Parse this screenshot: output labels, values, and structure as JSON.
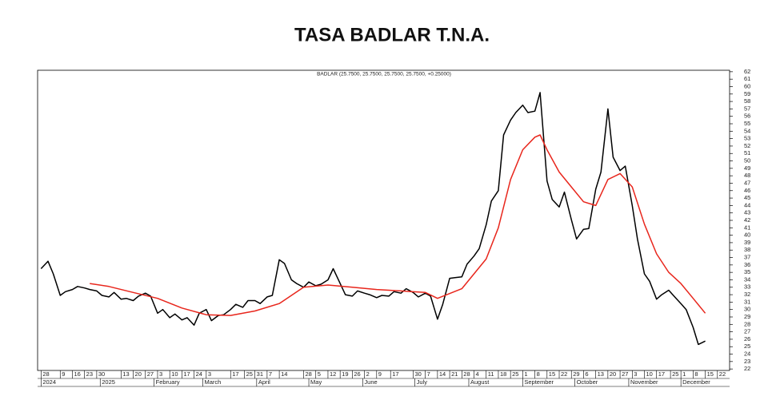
{
  "chart_data": {
    "type": "line",
    "title": "TASA BADLAR T.N.A.",
    "subtitle": "BADLAR (25.7500, 25.7500, 25.7500, 25.7500, +0.25000)",
    "xlim": [
      "2024-11-26",
      "2025-12-29"
    ],
    "ylim": [
      21.8,
      62.2
    ],
    "yticks": [
      22,
      23,
      24,
      25,
      26,
      27,
      28,
      29,
      30,
      31,
      32,
      33,
      34,
      35,
      36,
      37,
      38,
      39,
      40,
      41,
      42,
      43,
      44,
      45,
      46,
      47,
      48,
      49,
      50,
      51,
      52,
      53,
      54,
      55,
      56,
      57,
      58,
      59,
      60,
      61,
      62
    ],
    "xticks": [
      {
        "value": "2024-11-28",
        "label": "28"
      },
      {
        "value": "2024-12-09",
        "label": "9"
      },
      {
        "value": "2024-12-16",
        "label": "16"
      },
      {
        "value": "2024-12-23",
        "label": "23"
      },
      {
        "value": "2024-12-30",
        "label": "30"
      },
      {
        "value": "2025-01-13",
        "label": "13"
      },
      {
        "value": "2025-01-20",
        "label": "20"
      },
      {
        "value": "2025-01-27",
        "label": "27"
      },
      {
        "value": "2025-02-03",
        "label": "3"
      },
      {
        "value": "2025-02-10",
        "label": "10"
      },
      {
        "value": "2025-02-17",
        "label": "17"
      },
      {
        "value": "2025-02-24",
        "label": "24"
      },
      {
        "value": "2025-03-03",
        "label": "3"
      },
      {
        "value": "2025-03-17",
        "label": "17"
      },
      {
        "value": "2025-03-25",
        "label": "25"
      },
      {
        "value": "2025-03-31",
        "label": "31"
      },
      {
        "value": "2025-04-07",
        "label": "7"
      },
      {
        "value": "2025-04-14",
        "label": "14"
      },
      {
        "value": "2025-04-28",
        "label": "28"
      },
      {
        "value": "2025-05-05",
        "label": "5"
      },
      {
        "value": "2025-05-12",
        "label": "12"
      },
      {
        "value": "2025-05-19",
        "label": "19"
      },
      {
        "value": "2025-05-26",
        "label": "26"
      },
      {
        "value": "2025-06-02",
        "label": "2"
      },
      {
        "value": "2025-06-09",
        "label": "9"
      },
      {
        "value": "2025-06-17",
        "label": "17"
      },
      {
        "value": "2025-06-30",
        "label": "30"
      },
      {
        "value": "2025-07-07",
        "label": "7"
      },
      {
        "value": "2025-07-14",
        "label": "14"
      },
      {
        "value": "2025-07-21",
        "label": "21"
      },
      {
        "value": "2025-07-28",
        "label": "28"
      },
      {
        "value": "2025-08-04",
        "label": "4"
      },
      {
        "value": "2025-08-11",
        "label": "11"
      },
      {
        "value": "2025-08-18",
        "label": "18"
      },
      {
        "value": "2025-08-25",
        "label": "25"
      },
      {
        "value": "2025-09-01",
        "label": "1"
      },
      {
        "value": "2025-09-08",
        "label": "8"
      },
      {
        "value": "2025-09-15",
        "label": "15"
      },
      {
        "value": "2025-09-22",
        "label": "22"
      },
      {
        "value": "2025-09-29",
        "label": "29"
      },
      {
        "value": "2025-10-06",
        "label": "6"
      },
      {
        "value": "2025-10-13",
        "label": "13"
      },
      {
        "value": "2025-10-20",
        "label": "20"
      },
      {
        "value": "2025-10-27",
        "label": "27"
      },
      {
        "value": "2025-11-03",
        "label": "3"
      },
      {
        "value": "2025-11-10",
        "label": "10"
      },
      {
        "value": "2025-11-17",
        "label": "17"
      },
      {
        "value": "2025-11-25",
        "label": "25"
      },
      {
        "value": "2025-12-01",
        "label": "1"
      },
      {
        "value": "2025-12-08",
        "label": "8"
      },
      {
        "value": "2025-12-15",
        "label": "15"
      },
      {
        "value": "2025-12-22",
        "label": "22"
      }
    ],
    "xticks_months": [
      {
        "value": "2024-11-28",
        "label": "2024"
      },
      {
        "value": "2025-01-01",
        "label": "2025"
      },
      {
        "value": "2025-02-01",
        "label": "February"
      },
      {
        "value": "2025-03-01",
        "label": "March"
      },
      {
        "value": "2025-04-01",
        "label": "April"
      },
      {
        "value": "2025-05-01",
        "label": "May"
      },
      {
        "value": "2025-06-01",
        "label": "June"
      },
      {
        "value": "2025-07-01",
        "label": "July"
      },
      {
        "value": "2025-08-01",
        "label": "August"
      },
      {
        "value": "2025-09-01",
        "label": "September"
      },
      {
        "value": "2025-10-01",
        "label": "October"
      },
      {
        "value": "2025-11-01",
        "label": "November"
      },
      {
        "value": "2025-12-01",
        "label": "December"
      }
    ],
    "series": [
      {
        "color": "#000000",
        "x": [
          "2024-11-28",
          "2024-12-02",
          "2024-12-05",
          "2024-12-09",
          "2024-12-12",
          "2024-12-16",
          "2024-12-19",
          "2024-12-23",
          "2024-12-26",
          "2024-12-30",
          "2025-01-02",
          "2025-01-06",
          "2025-01-09",
          "2025-01-13",
          "2025-01-16",
          "2025-01-20",
          "2025-01-23",
          "2025-01-27",
          "2025-01-30",
          "2025-02-03",
          "2025-02-06",
          "2025-02-10",
          "2025-02-13",
          "2025-02-17",
          "2025-02-20",
          "2025-02-24",
          "2025-02-27",
          "2025-03-03",
          "2025-03-06",
          "2025-03-10",
          "2025-03-13",
          "2025-03-17",
          "2025-03-20",
          "2025-03-24",
          "2025-03-27",
          "2025-03-31",
          "2025-04-03",
          "2025-04-07",
          "2025-04-10",
          "2025-04-14",
          "2025-04-17",
          "2025-04-21",
          "2025-04-24",
          "2025-04-28",
          "2025-05-01",
          "2025-05-05",
          "2025-05-08",
          "2025-05-12",
          "2025-05-15",
          "2025-05-19",
          "2025-05-22",
          "2025-05-26",
          "2025-05-29",
          "2025-06-02",
          "2025-06-05",
          "2025-06-09",
          "2025-06-12",
          "2025-06-16",
          "2025-06-19",
          "2025-06-23",
          "2025-06-26",
          "2025-06-30",
          "2025-07-03",
          "2025-07-07",
          "2025-07-10",
          "2025-07-14",
          "2025-07-17",
          "2025-07-21",
          "2025-07-24",
          "2025-07-28",
          "2025-07-31",
          "2025-08-04",
          "2025-08-07",
          "2025-08-11",
          "2025-08-14",
          "2025-08-18",
          "2025-08-21",
          "2025-08-25",
          "2025-08-28",
          "2025-09-01",
          "2025-09-04",
          "2025-09-08",
          "2025-09-11",
          "2025-09-15",
          "2025-09-18",
          "2025-09-22",
          "2025-09-25",
          "2025-09-29",
          "2025-10-02",
          "2025-10-06",
          "2025-10-09",
          "2025-10-13",
          "2025-10-16",
          "2025-10-20",
          "2025-10-23",
          "2025-10-27",
          "2025-10-30",
          "2025-11-03",
          "2025-11-06",
          "2025-11-10",
          "2025-11-13",
          "2025-11-17",
          "2025-11-20",
          "2025-11-24",
          "2025-11-27",
          "2025-12-01",
          "2025-12-04",
          "2025-12-08",
          "2025-12-11",
          "2025-12-15"
        ],
        "values": [
          35.5,
          36.5,
          34.8,
          31.9,
          32.4,
          32.7,
          33.1,
          32.9,
          32.7,
          32.5,
          31.9,
          31.7,
          32.3,
          31.4,
          31.5,
          31.2,
          31.8,
          32.2,
          31.8,
          29.5,
          30.0,
          28.9,
          29.4,
          28.6,
          28.9,
          27.9,
          29.5,
          30.0,
          28.5,
          29.2,
          29.3,
          30.0,
          30.7,
          30.3,
          31.2,
          31.2,
          30.8,
          31.7,
          31.9,
          36.7,
          36.2,
          34.0,
          33.5,
          33.0,
          33.7,
          33.2,
          33.4,
          34.0,
          35.5,
          33.5,
          32.0,
          31.8,
          32.5,
          32.2,
          32.0,
          31.6,
          31.9,
          31.8,
          32.4,
          32.2,
          32.8,
          32.3,
          31.7,
          32.2,
          31.8,
          28.7,
          30.7,
          34.2,
          34.3,
          34.4,
          36.1,
          37.2,
          38.2,
          41.4,
          44.6,
          46.0,
          53.5,
          55.5,
          56.5,
          57.5,
          56.5,
          56.7,
          59.2,
          47.3,
          44.8,
          43.8,
          45.8,
          42.1,
          39.5,
          40.8,
          40.9,
          46.2,
          48.5,
          57.0,
          50.5,
          48.7,
          49.3,
          44.0,
          39.5,
          34.8,
          33.8,
          31.4,
          32.0,
          32.6,
          31.8,
          30.8,
          30.0,
          27.6,
          25.3,
          25.75
        ]
      },
      {
        "color": "#e8261c",
        "x": [
          "2024-12-26",
          "2025-01-06",
          "2025-01-20",
          "2025-02-03",
          "2025-02-17",
          "2025-03-03",
          "2025-03-17",
          "2025-03-31",
          "2025-04-14",
          "2025-04-28",
          "2025-05-12",
          "2025-05-26",
          "2025-06-09",
          "2025-06-23",
          "2025-07-07",
          "2025-07-14",
          "2025-07-28",
          "2025-08-11",
          "2025-08-18",
          "2025-08-25",
          "2025-09-01",
          "2025-09-08",
          "2025-09-11",
          "2025-09-15",
          "2025-09-22",
          "2025-09-29",
          "2025-10-06",
          "2025-10-13",
          "2025-10-20",
          "2025-10-27",
          "2025-11-03",
          "2025-11-10",
          "2025-11-17",
          "2025-11-24",
          "2025-12-01",
          "2025-12-08",
          "2025-12-15"
        ],
        "values": [
          33.5,
          33.1,
          32.3,
          31.5,
          30.2,
          29.3,
          29.2,
          29.8,
          30.8,
          33.0,
          33.3,
          33.0,
          32.7,
          32.5,
          32.3,
          31.5,
          32.8,
          36.8,
          41.0,
          47.5,
          51.5,
          53.2,
          53.5,
          51.5,
          48.5,
          46.5,
          44.5,
          44.0,
          47.5,
          48.3,
          46.5,
          41.5,
          37.5,
          35.0,
          33.5,
          31.5,
          29.5
        ]
      }
    ]
  }
}
